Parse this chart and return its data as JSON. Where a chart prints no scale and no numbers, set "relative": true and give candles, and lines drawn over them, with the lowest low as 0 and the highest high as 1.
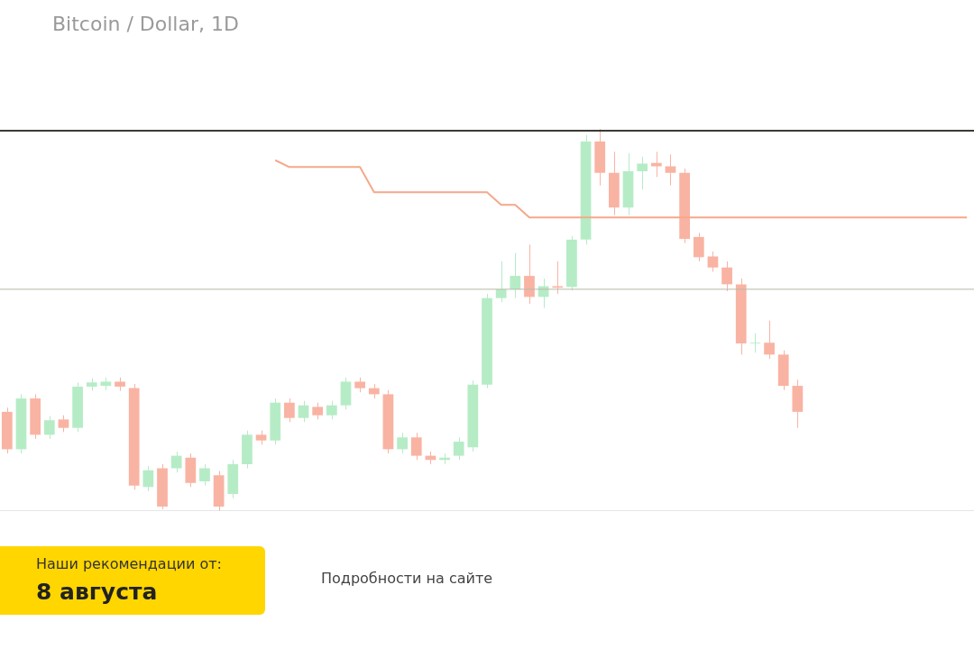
{
  "chart_data": {
    "type": "candlestick",
    "title": "Bitcoin / Dollar, 1D",
    "relative": true,
    "legend": false,
    "categories": [
      null,
      null,
      null,
      null,
      null,
      null,
      null,
      null,
      null,
      null,
      null,
      null,
      null,
      null,
      null,
      null,
      null,
      null,
      null,
      null,
      null,
      null,
      null,
      null,
      null,
      null,
      null,
      null,
      null,
      null,
      null,
      null,
      null,
      null,
      null,
      null,
      null,
      null,
      null,
      null,
      null,
      null,
      null,
      null,
      null,
      null,
      null,
      null,
      null,
      null,
      null,
      null,
      null,
      null,
      null,
      null,
      null,
      null,
      null,
      null,
      null,
      null,
      null,
      null,
      null,
      null,
      null,
      null,
      null
    ],
    "ohlc": [
      [
        0.259,
        0.27,
        0.15,
        0.161
      ],
      [
        0.161,
        0.305,
        0.15,
        0.294
      ],
      [
        0.294,
        0.305,
        0.188,
        0.199
      ],
      [
        0.199,
        0.248,
        0.188,
        0.237
      ],
      [
        0.239,
        0.25,
        0.206,
        0.217
      ],
      [
        0.217,
        0.336,
        0.206,
        0.325
      ],
      [
        0.325,
        0.347,
        0.314,
        0.336
      ],
      [
        0.327,
        0.349,
        0.316,
        0.338
      ],
      [
        0.338,
        0.349,
        0.314,
        0.325
      ],
      [
        0.321,
        0.332,
        0.055,
        0.066
      ],
      [
        0.062,
        0.117,
        0.051,
        0.106
      ],
      [
        0.111,
        0.122,
        0.004,
        0.011
      ],
      [
        0.111,
        0.155,
        0.1,
        0.144
      ],
      [
        0.139,
        0.15,
        0.062,
        0.073
      ],
      [
        0.077,
        0.122,
        0.066,
        0.111
      ],
      [
        0.093,
        0.104,
        0,
        0.011
      ],
      [
        0.044,
        0.133,
        0.033,
        0.122
      ],
      [
        0.122,
        0.21,
        0.111,
        0.199
      ],
      [
        0.199,
        0.21,
        0.173,
        0.184
      ],
      [
        0.184,
        0.294,
        0.173,
        0.283
      ],
      [
        0.283,
        0.294,
        0.232,
        0.243
      ],
      [
        0.243,
        0.288,
        0.232,
        0.276
      ],
      [
        0.272,
        0.283,
        0.239,
        0.25
      ],
      [
        0.25,
        0.288,
        0.239,
        0.276
      ],
      [
        0.276,
        0.349,
        0.265,
        0.338
      ],
      [
        0.338,
        0.349,
        0.31,
        0.321
      ],
      [
        0.321,
        0.332,
        0.294,
        0.305
      ],
      [
        0.305,
        0.316,
        0.15,
        0.161
      ],
      [
        0.161,
        0.204,
        0.15,
        0.192
      ],
      [
        0.192,
        0.204,
        0.133,
        0.144
      ],
      [
        0.144,
        0.155,
        0.122,
        0.133
      ],
      [
        0.133,
        0.15,
        0.122,
        0.139
      ],
      [
        0.144,
        0.192,
        0.133,
        0.181
      ],
      [
        0.166,
        0.341,
        0.155,
        0.33
      ],
      [
        0.33,
        0.568,
        0.321,
        0.557
      ],
      [
        0.557,
        0.653,
        0.546,
        0.58
      ],
      [
        0.58,
        0.675,
        0.557,
        0.615
      ],
      [
        0.615,
        0.697,
        0.542,
        0.56
      ],
      [
        0.56,
        0.608,
        0.531,
        0.588
      ],
      [
        0.588,
        0.653,
        0.568,
        0.584
      ],
      [
        0.586,
        0.719,
        0.577,
        0.71
      ],
      [
        0.71,
        0.984,
        0.697,
        0.967
      ],
      [
        0.967,
        1,
        0.852,
        0.885
      ],
      [
        0.885,
        0.94,
        0.774,
        0.794
      ],
      [
        0.794,
        0.936,
        0.774,
        0.889
      ],
      [
        0.889,
        0.927,
        0.841,
        0.909
      ],
      [
        0.911,
        0.94,
        0.874,
        0.902
      ],
      [
        0.902,
        0.933,
        0.852,
        0.885
      ],
      [
        0.885,
        0.896,
        0.701,
        0.712
      ],
      [
        0.717,
        0.728,
        0.653,
        0.664
      ],
      [
        0.666,
        0.679,
        0.626,
        0.637
      ],
      [
        0.637,
        0.653,
        0.575,
        0.593
      ],
      [
        0.593,
        0.608,
        0.409,
        0.438
      ],
      [
        0.438,
        0.465,
        0.414,
        0.44
      ],
      [
        0.44,
        0.498,
        0.398,
        0.409
      ],
      [
        0.409,
        0.42,
        0.316,
        0.327
      ],
      [
        0.327,
        0.343,
        0.217,
        0.259
      ],
      null,
      null,
      null,
      null,
      null,
      null,
      null,
      null,
      null,
      null,
      null,
      null
    ],
    "colors": [
      "#f9b3a3",
      "#b5ecc6",
      "#f9b3a3",
      "#b5ecc6",
      "#f9b3a3",
      "#b5ecc6",
      "#b5ecc6",
      "#b5ecc6",
      "#f9b3a3",
      "#f9b3a3",
      "#b5ecc6",
      "#f9b3a3",
      "#b5ecc6",
      "#f9b3a3",
      "#b5ecc6",
      "#f9b3a3",
      "#b5ecc6",
      "#b5ecc6",
      "#f9b3a3",
      "#b5ecc6",
      "#f9b3a3",
      "#b5ecc6",
      "#f9b3a3",
      "#b5ecc6",
      "#b5ecc6",
      "#f9b3a3",
      "#f9b3a3",
      "#f9b3a3",
      "#b5ecc6",
      "#f9b3a3",
      "#f9b3a3",
      "#b5ecc6",
      "#b5ecc6",
      "#b5ecc6",
      "#b5ecc6",
      "#b5ecc6",
      "#b5ecc6",
      "#f9b3a3",
      "#b5ecc6",
      "#f9b3a3",
      "#b5ecc6",
      "#b5ecc6",
      "#f9b3a3",
      "#f9b3a3",
      "#b5ecc6",
      "#b5ecc6",
      "#f9b3a3",
      "#f9b3a3",
      "#f9b3a3",
      "#f9b3a3",
      "#f9b3a3",
      "#f9b3a3",
      "#f9b3a3",
      "#b5ecc6",
      "#f9b3a3",
      "#f9b3a3",
      "#f9b3a3",
      null,
      null,
      null,
      null,
      null,
      null,
      null,
      null,
      null,
      null,
      null,
      null
    ],
    "series": [
      {
        "type": "line",
        "color": "#f5a88a",
        "values": [
          null,
          null,
          null,
          null,
          null,
          null,
          null,
          null,
          null,
          null,
          null,
          null,
          null,
          null,
          null,
          null,
          null,
          null,
          null,
          0.918,
          0.9,
          0.9,
          0.9,
          0.9,
          0.9,
          0.9,
          0.834,
          0.834,
          0.834,
          0.834,
          0.834,
          0.834,
          0.834,
          0.834,
          0.834,
          0.801,
          0.801,
          0.768,
          0.768,
          0.768,
          0.768,
          0.768,
          0.768,
          0.768,
          0.768,
          0.768,
          0.768,
          0.768,
          0.768,
          0.768,
          0.768,
          0.768,
          0.768,
          0.768,
          0.768,
          0.768,
          0.768,
          0.768,
          0.768,
          0.768,
          0.768,
          0.768,
          0.768,
          0.768,
          0.768,
          0.768,
          0.768,
          0.768,
          0.768
        ]
      }
    ],
    "ref_lines": [
      {
        "axis": "y",
        "value": 0.995,
        "color": "#3a3a34"
      },
      {
        "axis": "y",
        "value": 0.58,
        "color": "#b8b8a8"
      }
    ],
    "annotations": [
      "Наши рекомендации от:",
      "8 августа",
      "Подробности на сайте"
    ]
  }
}
